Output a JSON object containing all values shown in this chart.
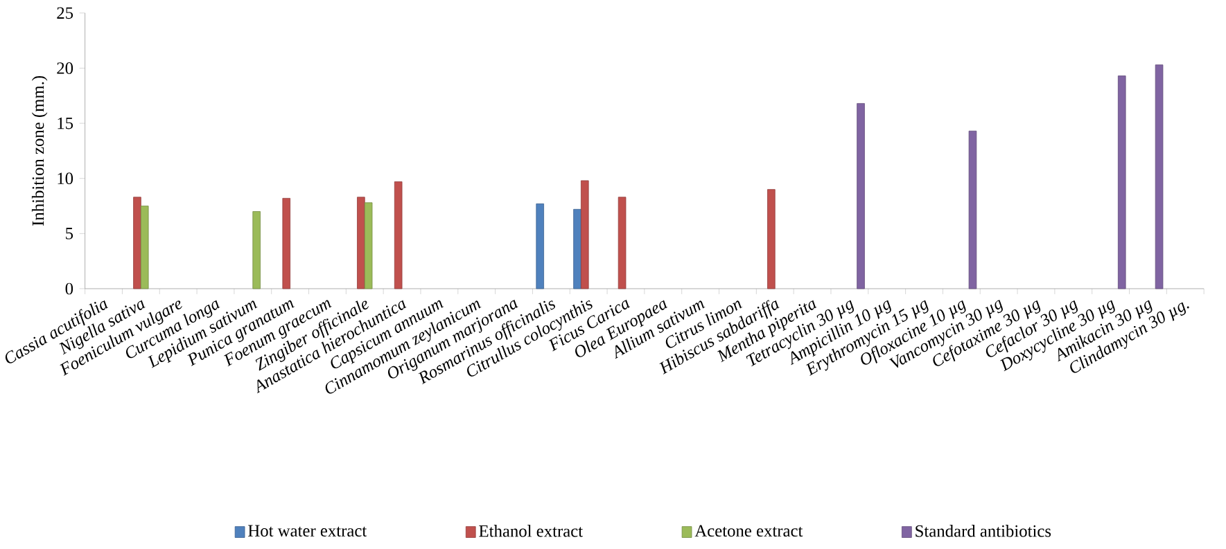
{
  "chart_data": {
    "type": "bar",
    "ylabel": "Inhibition zone (mm.)",
    "legend": "bottom",
    "ylim": [
      0,
      25
    ],
    "yticks": [
      0,
      5,
      10,
      15,
      20,
      25
    ],
    "categories": [
      "Cassia acutifolia",
      "Nigella sativa",
      "Foeniculum vulgare",
      "Curcuma longa",
      "Lepidium sativum",
      "Punica granatum",
      "Foenum graecum",
      "Zingiber officinale",
      "Anastatica hierochuntica",
      "Capsicum annuum",
      "Cinnamomum zeylanicum",
      "Origanum marjorana",
      "Rosmarinus officinalis",
      "Citrullus colocynthis",
      "Ficus Carica",
      "Olea Europaea",
      "Allium sativum",
      "Citrus limon",
      "Hibiscus sabdariffa",
      "Mentha piperita",
      "Tetracyclin 30 µg",
      "Ampicillin 10 µg",
      "Erythromycin 15 µg",
      "Ofloxacine 10 µg",
      "Vancomycin 30 µg",
      "Cefotaxime 30 µg",
      "Cefaclor 30 µg",
      "Doxycycline 30 µg",
      "Amikacin 30 µg",
      "Clindamycin 30 µg."
    ],
    "series": [
      {
        "name": "Hot water extract",
        "color": "#4f81bd",
        "values": [
          null,
          null,
          null,
          null,
          null,
          null,
          null,
          null,
          null,
          null,
          null,
          null,
          7.7,
          7.2,
          null,
          null,
          null,
          null,
          null,
          null,
          null,
          null,
          null,
          null,
          null,
          null,
          null,
          null,
          null,
          null
        ]
      },
      {
        "name": "Ethanol extract",
        "color": "#c0504d",
        "values": [
          null,
          8.3,
          null,
          null,
          null,
          8.2,
          null,
          8.3,
          9.7,
          null,
          null,
          null,
          null,
          9.8,
          8.3,
          null,
          null,
          null,
          9.0,
          null,
          null,
          null,
          null,
          null,
          null,
          null,
          null,
          null,
          null,
          null
        ]
      },
      {
        "name": "Acetone extract",
        "color": "#9bbb59",
        "values": [
          null,
          7.5,
          null,
          null,
          7.0,
          null,
          null,
          7.8,
          null,
          null,
          null,
          null,
          null,
          null,
          null,
          null,
          null,
          null,
          null,
          null,
          null,
          null,
          null,
          null,
          null,
          null,
          null,
          null,
          null,
          null
        ]
      },
      {
        "name": "Standard antibiotics",
        "color": "#8064a2",
        "values": [
          null,
          null,
          null,
          null,
          null,
          null,
          null,
          null,
          null,
          null,
          null,
          null,
          null,
          null,
          null,
          null,
          null,
          null,
          null,
          null,
          16.8,
          null,
          null,
          14.3,
          null,
          null,
          null,
          19.3,
          20.3,
          null
        ]
      }
    ]
  }
}
